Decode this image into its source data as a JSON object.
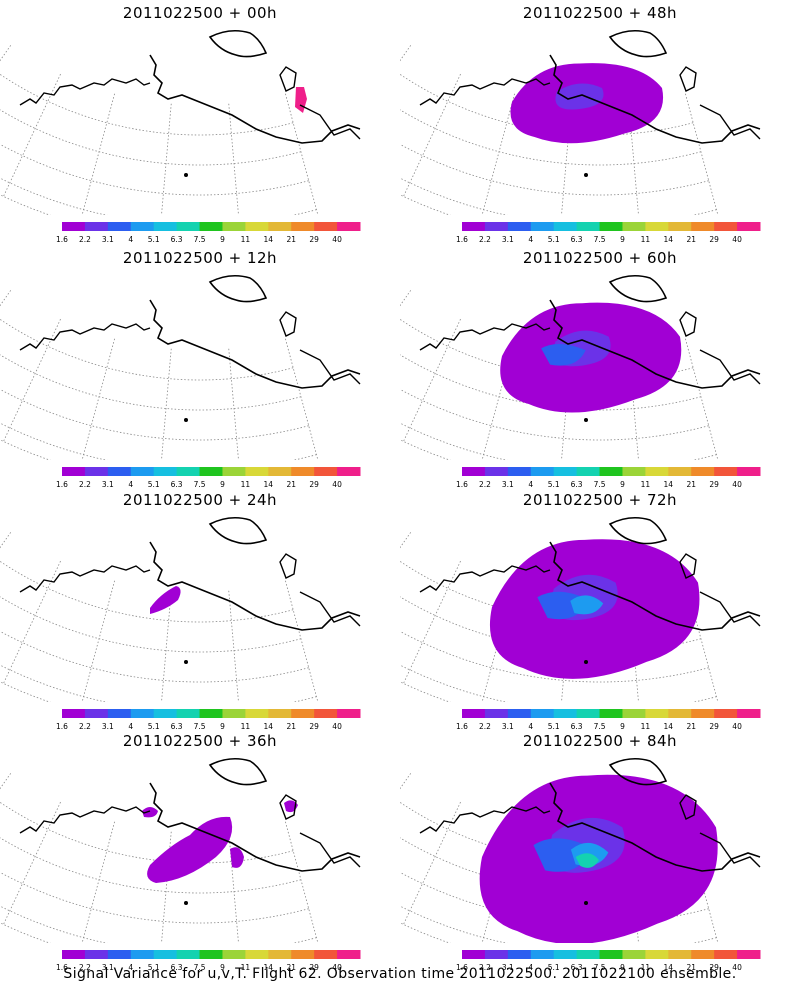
{
  "panels": [
    {
      "title": "2011022500 + 00h",
      "level": 0
    },
    {
      "title": "2011022500 + 48h",
      "level": 3
    },
    {
      "title": "2011022500 + 12h",
      "level": 0
    },
    {
      "title": "2011022500 + 60h",
      "level": 4
    },
    {
      "title": "2011022500 + 24h",
      "level": 1
    },
    {
      "title": "2011022500 + 72h",
      "level": 5
    },
    {
      "title": "2011022500 + 36h",
      "level": 2
    },
    {
      "title": "2011022500 + 84h",
      "level": 6
    }
  ],
  "colorbar": {
    "labels": [
      "1.6",
      "2.2",
      "3.1",
      "4",
      "5.1",
      "6.3",
      "7.5",
      "9",
      "11",
      "14",
      "21",
      "29",
      "40"
    ],
    "colors": [
      "#a100d4",
      "#6b32e8",
      "#2c5ef0",
      "#1d9bf0",
      "#16bfe0",
      "#14d2b0",
      "#1fc41f",
      "#9bd438",
      "#d8d838",
      "#e3b836",
      "#ef8a2a",
      "#f2553a",
      "#ef1f8a"
    ]
  },
  "footer": "Signal Variance for u,v,T. Flight 62. Observation time 2011022500. 2011022100 ensemble."
}
